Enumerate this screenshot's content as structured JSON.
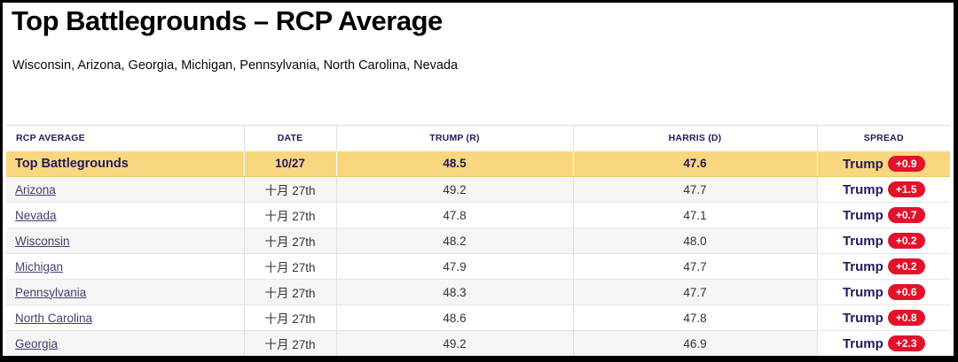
{
  "page": {
    "title": "Top Battlegrounds – RCP Average",
    "subtitle": "Wisconsin, Arizona, Georgia, Michigan, Pennsylvania, North Carolina, Nevada"
  },
  "colors": {
    "navy": "#221a5e",
    "link_purple": "#453c6e",
    "badge_red": "#e2122b",
    "highlight_yellow": "#f9d77e",
    "alt_row_gray": "#f5f5f5",
    "text_dark": "#333333"
  },
  "table": {
    "columns": [
      "RCP AVERAGE",
      "DATE",
      "TRUMP (R)",
      "HARRIS (D)",
      "SPREAD"
    ],
    "rows": [
      {
        "name": "Top Battlegrounds",
        "date": "10/27",
        "trump": "48.5",
        "harris": "47.6",
        "spread_winner": "Trump",
        "spread_value": "+0.9",
        "highlight": true,
        "is_link": false
      },
      {
        "name": "Arizona",
        "date": "十月 27th",
        "trump": "49.2",
        "harris": "47.7",
        "spread_winner": "Trump",
        "spread_value": "+1.5",
        "highlight": false,
        "is_link": true
      },
      {
        "name": "Nevada",
        "date": "十月 27th",
        "trump": "47.8",
        "harris": "47.1",
        "spread_winner": "Trump",
        "spread_value": "+0.7",
        "highlight": false,
        "is_link": true
      },
      {
        "name": "Wisconsin",
        "date": "十月 27th",
        "trump": "48.2",
        "harris": "48.0",
        "spread_winner": "Trump",
        "spread_value": "+0.2",
        "highlight": false,
        "is_link": true
      },
      {
        "name": "Michigan",
        "date": "十月 27th",
        "trump": "47.9",
        "harris": "47.7",
        "spread_winner": "Trump",
        "spread_value": "+0.2",
        "highlight": false,
        "is_link": true
      },
      {
        "name": "Pennsylvania",
        "date": "十月 27th",
        "trump": "48.3",
        "harris": "47.7",
        "spread_winner": "Trump",
        "spread_value": "+0.6",
        "highlight": false,
        "is_link": true
      },
      {
        "name": "North Carolina",
        "date": "十月 27th",
        "trump": "48.6",
        "harris": "47.8",
        "spread_winner": "Trump",
        "spread_value": "+0.8",
        "highlight": false,
        "is_link": true
      },
      {
        "name": "Georgia",
        "date": "十月 27th",
        "trump": "49.2",
        "harris": "46.9",
        "spread_winner": "Trump",
        "spread_value": "+2.3",
        "highlight": false,
        "is_link": true
      }
    ]
  }
}
